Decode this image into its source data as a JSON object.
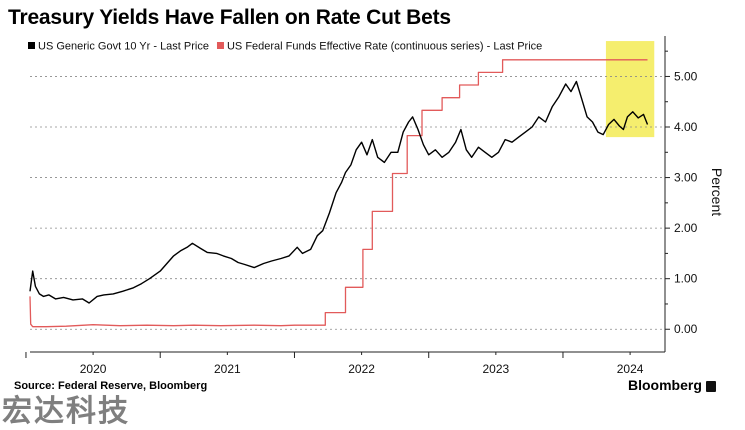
{
  "chart_data": {
    "type": "line",
    "title": "Treasury Yields Have Fallen on Rate Cut Bets",
    "ylabel": "Percent",
    "ylim": [
      -0.45,
      5.8
    ],
    "xlim": [
      2019.53,
      2024.26
    ],
    "y_ticks": [
      {
        "value": 0,
        "label": "0.00"
      },
      {
        "value": 1,
        "label": "1.00"
      },
      {
        "value": 2,
        "label": "2.00"
      },
      {
        "value": 3,
        "label": "3.00"
      },
      {
        "value": 4,
        "label": "4.00"
      },
      {
        "value": 5,
        "label": "5.00"
      }
    ],
    "x_ticks": [
      {
        "value": 2020,
        "label": "2020"
      },
      {
        "value": 2021,
        "label": "2021"
      },
      {
        "value": 2022,
        "label": "2022"
      },
      {
        "value": 2023,
        "label": "2023"
      },
      {
        "value": 2024,
        "label": "2024"
      }
    ],
    "legend": "top-left",
    "highlight": {
      "x": [
        2023.82,
        2024.18
      ],
      "y": [
        3.8,
        5.7
      ],
      "color": "#f5ee6e"
    },
    "series": [
      {
        "name": "US Generic Govt 10 Yr - Last Price",
        "color": "#000000",
        "points": [
          [
            2019.53,
            0.75
          ],
          [
            2019.55,
            1.15
          ],
          [
            2019.57,
            0.85
          ],
          [
            2019.6,
            0.7
          ],
          [
            2019.63,
            0.65
          ],
          [
            2019.67,
            0.68
          ],
          [
            2019.72,
            0.6
          ],
          [
            2019.78,
            0.63
          ],
          [
            2019.85,
            0.58
          ],
          [
            2019.92,
            0.6
          ],
          [
            2019.97,
            0.52
          ],
          [
            2020.03,
            0.65
          ],
          [
            2020.08,
            0.68
          ],
          [
            2020.15,
            0.7
          ],
          [
            2020.22,
            0.75
          ],
          [
            2020.3,
            0.82
          ],
          [
            2020.36,
            0.9
          ],
          [
            2020.42,
            1.0
          ],
          [
            2020.5,
            1.15
          ],
          [
            2020.55,
            1.3
          ],
          [
            2020.6,
            1.45
          ],
          [
            2020.65,
            1.55
          ],
          [
            2020.7,
            1.62
          ],
          [
            2020.74,
            1.7
          ],
          [
            2020.8,
            1.6
          ],
          [
            2020.85,
            1.52
          ],
          [
            2020.92,
            1.5
          ],
          [
            2020.97,
            1.45
          ],
          [
            2021.03,
            1.4
          ],
          [
            2021.08,
            1.32
          ],
          [
            2021.13,
            1.28
          ],
          [
            2021.2,
            1.22
          ],
          [
            2021.27,
            1.3
          ],
          [
            2021.33,
            1.35
          ],
          [
            2021.4,
            1.4
          ],
          [
            2021.46,
            1.45
          ],
          [
            2021.52,
            1.62
          ],
          [
            2021.56,
            1.5
          ],
          [
            2021.62,
            1.58
          ],
          [
            2021.67,
            1.85
          ],
          [
            2021.71,
            1.95
          ],
          [
            2021.76,
            2.3
          ],
          [
            2021.81,
            2.7
          ],
          [
            2021.85,
            2.9
          ],
          [
            2021.88,
            3.1
          ],
          [
            2021.92,
            3.25
          ],
          [
            2021.96,
            3.55
          ],
          [
            2022.0,
            3.7
          ],
          [
            2022.04,
            3.45
          ],
          [
            2022.08,
            3.75
          ],
          [
            2022.12,
            3.4
          ],
          [
            2022.17,
            3.3
          ],
          [
            2022.22,
            3.5
          ],
          [
            2022.27,
            3.5
          ],
          [
            2022.31,
            3.9
          ],
          [
            2022.35,
            4.1
          ],
          [
            2022.38,
            4.2
          ],
          [
            2022.42,
            3.95
          ],
          [
            2022.46,
            3.65
          ],
          [
            2022.5,
            3.45
          ],
          [
            2022.55,
            3.55
          ],
          [
            2022.6,
            3.4
          ],
          [
            2022.65,
            3.5
          ],
          [
            2022.7,
            3.7
          ],
          [
            2022.74,
            3.95
          ],
          [
            2022.78,
            3.55
          ],
          [
            2022.82,
            3.4
          ],
          [
            2022.87,
            3.6
          ],
          [
            2022.92,
            3.5
          ],
          [
            2022.97,
            3.4
          ],
          [
            2023.02,
            3.5
          ],
          [
            2023.07,
            3.75
          ],
          [
            2023.12,
            3.7
          ],
          [
            2023.17,
            3.8
          ],
          [
            2023.22,
            3.9
          ],
          [
            2023.27,
            4.0
          ],
          [
            2023.32,
            4.2
          ],
          [
            2023.37,
            4.1
          ],
          [
            2023.42,
            4.4
          ],
          [
            2023.47,
            4.6
          ],
          [
            2023.52,
            4.85
          ],
          [
            2023.56,
            4.7
          ],
          [
            2023.6,
            4.9
          ],
          [
            2023.64,
            4.55
          ],
          [
            2023.68,
            4.2
          ],
          [
            2023.72,
            4.1
          ],
          [
            2023.76,
            3.9
          ],
          [
            2023.8,
            3.85
          ],
          [
            2023.84,
            4.05
          ],
          [
            2023.88,
            4.15
          ],
          [
            2023.92,
            4.02
          ],
          [
            2023.95,
            3.95
          ],
          [
            2023.98,
            4.2
          ],
          [
            2024.02,
            4.3
          ],
          [
            2024.06,
            4.18
          ],
          [
            2024.1,
            4.25
          ],
          [
            2024.13,
            4.05
          ]
        ]
      },
      {
        "name": "US Federal Funds Effective Rate (continuous series) - Last Price",
        "color": "#e25a5a",
        "points": [
          [
            2019.53,
            0.65
          ],
          [
            2019.535,
            0.1
          ],
          [
            2019.55,
            0.05
          ],
          [
            2019.65,
            0.05
          ],
          [
            2019.8,
            0.06
          ],
          [
            2020.0,
            0.09
          ],
          [
            2020.2,
            0.07
          ],
          [
            2020.4,
            0.08
          ],
          [
            2020.6,
            0.07
          ],
          [
            2020.75,
            0.08
          ],
          [
            2020.95,
            0.07
          ],
          [
            2021.2,
            0.08
          ],
          [
            2021.4,
            0.07
          ],
          [
            2021.5,
            0.08
          ],
          [
            2021.7,
            0.08
          ],
          [
            2021.73,
            0.08
          ],
          [
            2021.73,
            0.33
          ],
          [
            2021.88,
            0.33
          ],
          [
            2021.88,
            0.83
          ],
          [
            2022.01,
            0.83
          ],
          [
            2022.01,
            1.58
          ],
          [
            2022.08,
            1.58
          ],
          [
            2022.08,
            2.33
          ],
          [
            2022.23,
            2.33
          ],
          [
            2022.23,
            3.08
          ],
          [
            2022.34,
            3.08
          ],
          [
            2022.34,
            3.83
          ],
          [
            2022.45,
            3.83
          ],
          [
            2022.45,
            4.33
          ],
          [
            2022.6,
            4.33
          ],
          [
            2022.6,
            4.58
          ],
          [
            2022.73,
            4.58
          ],
          [
            2022.73,
            4.83
          ],
          [
            2022.87,
            4.83
          ],
          [
            2022.87,
            5.08
          ],
          [
            2023.05,
            5.08
          ],
          [
            2023.05,
            5.33
          ],
          [
            2024.13,
            5.33
          ]
        ]
      }
    ]
  },
  "footer": {
    "source": "Source: Federal Reserve, Bloomberg",
    "brand": "Bloomberg"
  },
  "watermark": "宏达科技"
}
